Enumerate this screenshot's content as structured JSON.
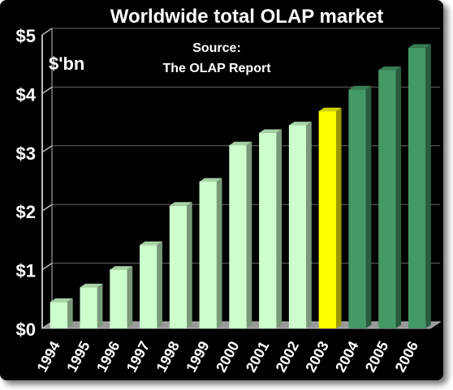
{
  "chart_data": {
    "type": "bar",
    "title": "Worldwide total OLAP market",
    "unit_label": "$'bn",
    "source_line1": "Source:",
    "source_line2": "The OLAP Report",
    "categories": [
      "1994",
      "1995",
      "1996",
      "1997",
      "1998",
      "1999",
      "2000",
      "2001",
      "2002",
      "2003",
      "2004",
      "2005",
      "2006"
    ],
    "values": [
      0.45,
      0.7,
      1.0,
      1.42,
      2.09,
      2.5,
      3.12,
      3.33,
      3.46,
      3.7,
      4.07,
      4.4,
      4.78
    ],
    "ylim": [
      0,
      5
    ],
    "yticks": [
      0,
      1,
      2,
      3,
      4,
      5
    ],
    "ytick_labels": [
      "$0",
      "$1",
      "$2",
      "$3",
      "$4",
      "$5"
    ],
    "grid": true,
    "bar_colors": [
      "#ccffcc",
      "#ccffcc",
      "#ccffcc",
      "#ccffcc",
      "#ccffcc",
      "#ccffcc",
      "#ccffcc",
      "#ccffcc",
      "#ccffcc",
      "#ffff00",
      "#449966",
      "#449966",
      "#449966"
    ],
    "colors": {
      "background": "#000000",
      "axis": "#bbbbbb",
      "gridline": "#666666",
      "floor": "#999999",
      "text": "#ffffff"
    }
  }
}
